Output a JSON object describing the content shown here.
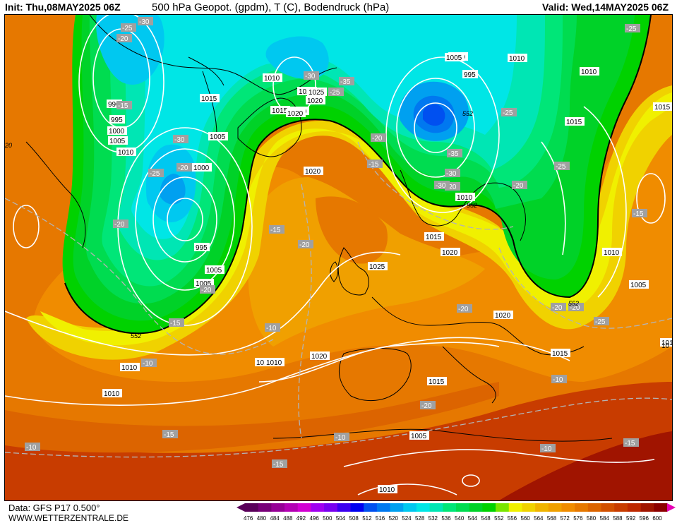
{
  "header": {
    "init": "Init: Thu,08MAY2025 06Z",
    "title": "500 hPa Geopot. (gpdm), T (C), Bodendruck (hPa)",
    "valid": "Valid: Wed,14MAY2025 06Z"
  },
  "footer": {
    "data_source": "Data: GFS P17 0.500°",
    "website": "WWW.WETTERZENTRALE.DE"
  },
  "colors": {
    "geopot_low": "#1e90ff",
    "geopot_mid_green": "#00d23c",
    "geopot_yellow": "#f0e000",
    "geopot_orange": "#f0a000",
    "geopot_high": "#c02810"
  },
  "colorbar": {
    "labels": [
      "476",
      "480",
      "484",
      "488",
      "492",
      "496",
      "500",
      "504",
      "508",
      "512",
      "516",
      "520",
      "524",
      "528",
      "532",
      "536",
      "540",
      "544",
      "548",
      "552",
      "556",
      "560",
      "564",
      "568",
      "572",
      "576",
      "580",
      "584",
      "588",
      "592",
      "596",
      "600"
    ],
    "colors": [
      "#5a005a",
      "#780078",
      "#960096",
      "#b400b4",
      "#d200d2",
      "#a000f0",
      "#7800f0",
      "#3c00f0",
      "#0000f0",
      "#0050f0",
      "#0078f0",
      "#00a0f0",
      "#00c8f0",
      "#00e6e6",
      "#00e6b4",
      "#00e678",
      "#00dc50",
      "#00d228",
      "#00d200",
      "#7ae600",
      "#f0f000",
      "#f0d200",
      "#f0b400",
      "#f0a000",
      "#f08c00",
      "#e67800",
      "#dc6400",
      "#d25000",
      "#c83c00",
      "#be2800",
      "#a01400",
      "#8c0000"
    ]
  },
  "pressure_labels": [
    "990",
    "995",
    "1000",
    "1005",
    "1010",
    "1015",
    "1020",
    "1025",
    "1000",
    "995",
    "1005",
    "1010",
    "1015",
    "1020",
    "1025",
    "1020",
    "1010",
    "1000",
    "995",
    "1010",
    "1015",
    "1005",
    "1010",
    "1010",
    "1005",
    "1010",
    "1015",
    "1020",
    "1025",
    "1015",
    "1020",
    "1020",
    "1015",
    "1010",
    "1005",
    "1010",
    "1010",
    "1015",
    "1020",
    "1015",
    "1010",
    "1005",
    "1005"
  ],
  "temp_labels": [
    "-25",
    "-30",
    "-20",
    "-15",
    "-30",
    "-25",
    "-20",
    "-25",
    "-30",
    "-35",
    "-20",
    "-25",
    "-35",
    "-30",
    "-20",
    "-15",
    "-25",
    "-20",
    "-25",
    "-15",
    "-20",
    "-20",
    "-15",
    "-20",
    "-15",
    "-10",
    "-10",
    "-10",
    "-20",
    "-10",
    "-15",
    "-15",
    "-10",
    "-10",
    "-15",
    "-25",
    "-20",
    "-20",
    "-20",
    "-30"
  ],
  "geopot_labels": [
    "552",
    "552",
    "552",
    "552",
    "20"
  ],
  "pressure_label_1000b": "1000",
  "right_edge_label": "10"
}
